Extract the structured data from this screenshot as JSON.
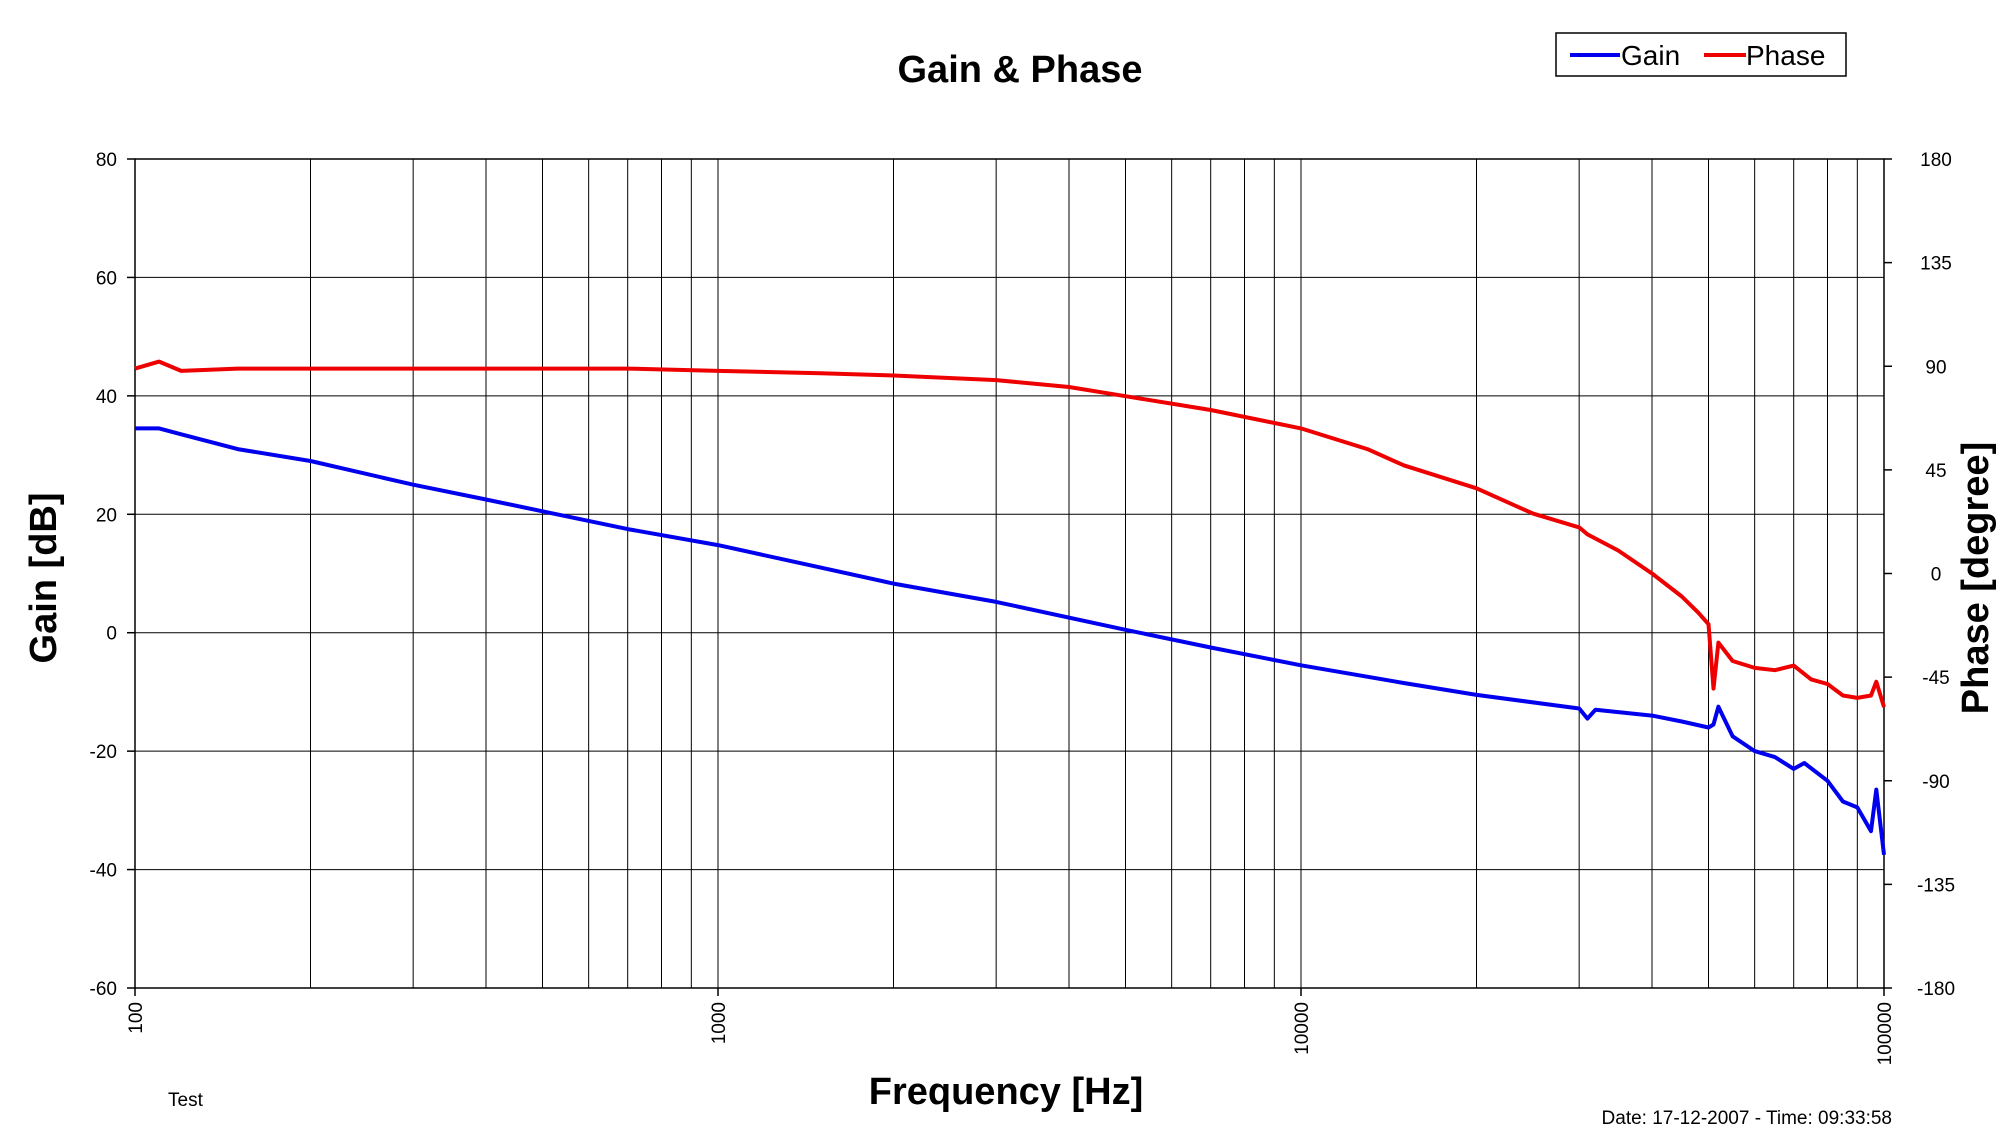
{
  "chart_data": {
    "type": "line",
    "title": "Gain & Phase",
    "xlabel": "Frequency [Hz]",
    "ylabel": "Gain [dB]",
    "y2label": "Phase [degree]",
    "x_scale": "log",
    "xlim": [
      100,
      100000
    ],
    "ylim": [
      -60,
      80
    ],
    "y2lim": [
      -180,
      180
    ],
    "x_ticks": [
      "100",
      "1000",
      "10000",
      "100000"
    ],
    "y_ticks": [
      "80",
      "60",
      "40",
      "20",
      "0",
      "-20",
      "-40",
      "-60"
    ],
    "y2_ticks": [
      "180",
      "135",
      "90",
      "45",
      "0",
      "-45",
      "-90",
      "-135",
      "-180"
    ],
    "grid": true,
    "legend_position": "top-right",
    "series": [
      {
        "name": "Gain",
        "axis": "left",
        "color": "#0000ee",
        "x": [
          100,
          110,
          120,
          150,
          200,
          300,
          400,
          500,
          700,
          1000,
          1500,
          2000,
          3000,
          5000,
          7000,
          10000,
          15000,
          20000,
          30000,
          31000,
          32000,
          40000,
          45000,
          50000,
          51000,
          52000,
          55000,
          60000,
          65000,
          70000,
          73000,
          80000,
          85000,
          90000,
          95000,
          97000,
          100000
        ],
        "values": [
          34.5,
          34.5,
          33.5,
          31.0,
          29.0,
          25.0,
          22.5,
          20.5,
          17.5,
          14.8,
          11.0,
          8.3,
          5.2,
          0.5,
          -2.5,
          -5.5,
          -8.5,
          -10.5,
          -12.8,
          -14.5,
          -13.0,
          -14.0,
          -15.0,
          -16.0,
          -15.5,
          -12.5,
          -17.5,
          -20.0,
          -21.0,
          -23.0,
          -22.0,
          -25.0,
          -28.5,
          -29.5,
          -33.5,
          -26.5,
          -37.5
        ]
      },
      {
        "name": "Phase",
        "axis": "right",
        "color": "#ee0000",
        "x": [
          100,
          110,
          120,
          150,
          200,
          300,
          500,
          700,
          1000,
          1500,
          2000,
          3000,
          4000,
          5000,
          7000,
          10000,
          13000,
          15000,
          20000,
          25000,
          30000,
          31000,
          35000,
          40000,
          45000,
          48000,
          50000,
          51000,
          52000,
          55000,
          60000,
          65000,
          70000,
          75000,
          80000,
          85000,
          90000,
          95000,
          97000,
          100000
        ],
        "values": [
          89,
          92,
          88,
          89,
          89,
          89,
          89,
          89,
          88,
          87,
          86,
          84,
          81,
          77,
          71,
          63,
          54,
          47,
          37,
          26,
          20,
          17,
          10,
          0,
          -10,
          -17,
          -22,
          -50,
          -30,
          -38,
          -41,
          -42,
          -40,
          -46,
          -48,
          -53,
          -54,
          -53,
          -47,
          -58
        ]
      }
    ],
    "annotations": [
      "Test",
      "Date: 17-12-2007 - Time: 09:33:58"
    ]
  }
}
